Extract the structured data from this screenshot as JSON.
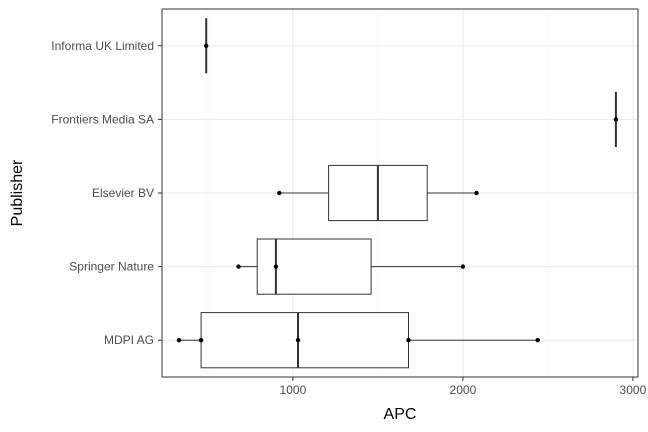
{
  "chart_data": {
    "type": "boxplot",
    "orientation": "horizontal",
    "title": "",
    "xlabel": "APC",
    "ylabel": "Publisher",
    "xlim": [
      230,
      3030
    ],
    "x_ticks": [
      1000,
      2000,
      3000
    ],
    "grid": true,
    "legend": "none",
    "categories": [
      "MDPI AG",
      "Springer Nature",
      "Elsevier BV",
      "Frontiers Media SA",
      "Informa UK Limited"
    ],
    "boxes": [
      {
        "category": "MDPI AG",
        "whisker_low": 330,
        "q1": 460,
        "median": 1030,
        "q3": 1680,
        "whisker_high": 2440,
        "points": [
          330,
          460,
          1030,
          1680,
          2440
        ]
      },
      {
        "category": "Springer Nature",
        "whisker_low": 680,
        "q1": 790,
        "median": 900,
        "q3": 1460,
        "whisker_high": 2000,
        "points": [
          680,
          900,
          2000
        ]
      },
      {
        "category": "Elsevier BV",
        "whisker_low": 920,
        "q1": 1210,
        "median": 1500,
        "q3": 1790,
        "whisker_high": 2080,
        "points": [
          920,
          2080
        ]
      },
      {
        "category": "Frontiers Media SA",
        "whisker_low": 2900,
        "q1": 2900,
        "median": 2900,
        "q3": 2900,
        "whisker_high": 2900,
        "points": [
          2900
        ]
      },
      {
        "category": "Informa UK Limited",
        "whisker_low": 490,
        "q1": 490,
        "median": 490,
        "q3": 490,
        "whisker_high": 490,
        "points": [
          490
        ]
      }
    ]
  }
}
